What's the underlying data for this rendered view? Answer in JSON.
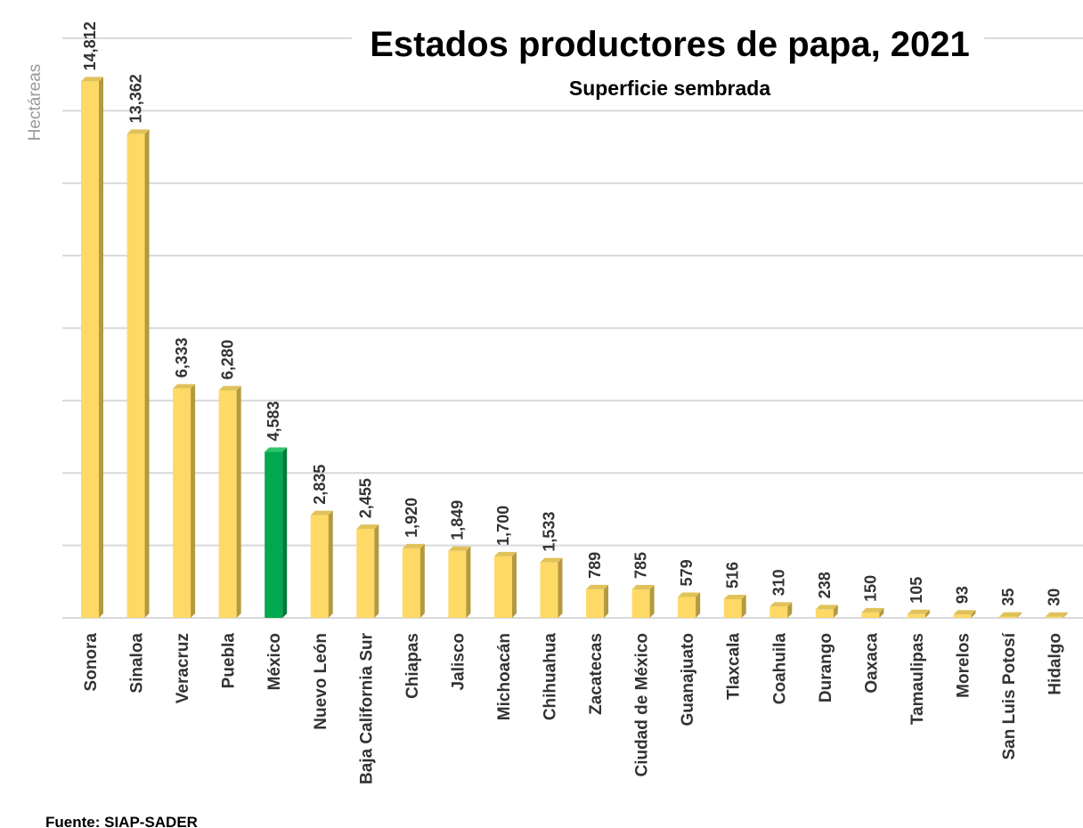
{
  "chart_data": {
    "type": "bar",
    "title": "Estados productores de papa, 2021",
    "subtitle": "Superficie sembrada",
    "ylabel": "Hectáreas",
    "xlabel": "",
    "source": "Fuente: SIAP-SADER",
    "ylim": [
      0,
      16000
    ],
    "grid": true,
    "highlight_color": "#00A84F",
    "bar_color": "#FFD966",
    "categories": [
      "Sonora",
      "Sinaloa",
      "Veracruz",
      "Puebla",
      "México",
      "Nuevo León",
      "Baja California Sur",
      "Chiapas",
      "Jalisco",
      "Michoacán",
      "Chihuahua",
      "Zacatecas",
      "Ciudad de México",
      "Guanajuato",
      "Tlaxcala",
      "Coahuila",
      "Durango",
      "Oaxaca",
      "Tamaulipas",
      "Morelos",
      "San Luis Potosí",
      "Hidalgo"
    ],
    "values": [
      14812,
      13362,
      6333,
      6280,
      4583,
      2835,
      2455,
      1920,
      1849,
      1700,
      1533,
      789,
      785,
      579,
      516,
      310,
      238,
      150,
      105,
      93,
      35,
      30
    ],
    "value_labels": [
      "14,812",
      "13,362",
      "6,333",
      "6,280",
      "4,583",
      "2,835",
      "2,455",
      "1,920",
      "1,849",
      "1,700",
      "1,533",
      "789",
      "785",
      "579",
      "516",
      "310",
      "238",
      "150",
      "105",
      "93",
      "35",
      "30"
    ],
    "highlight_index": 4
  }
}
